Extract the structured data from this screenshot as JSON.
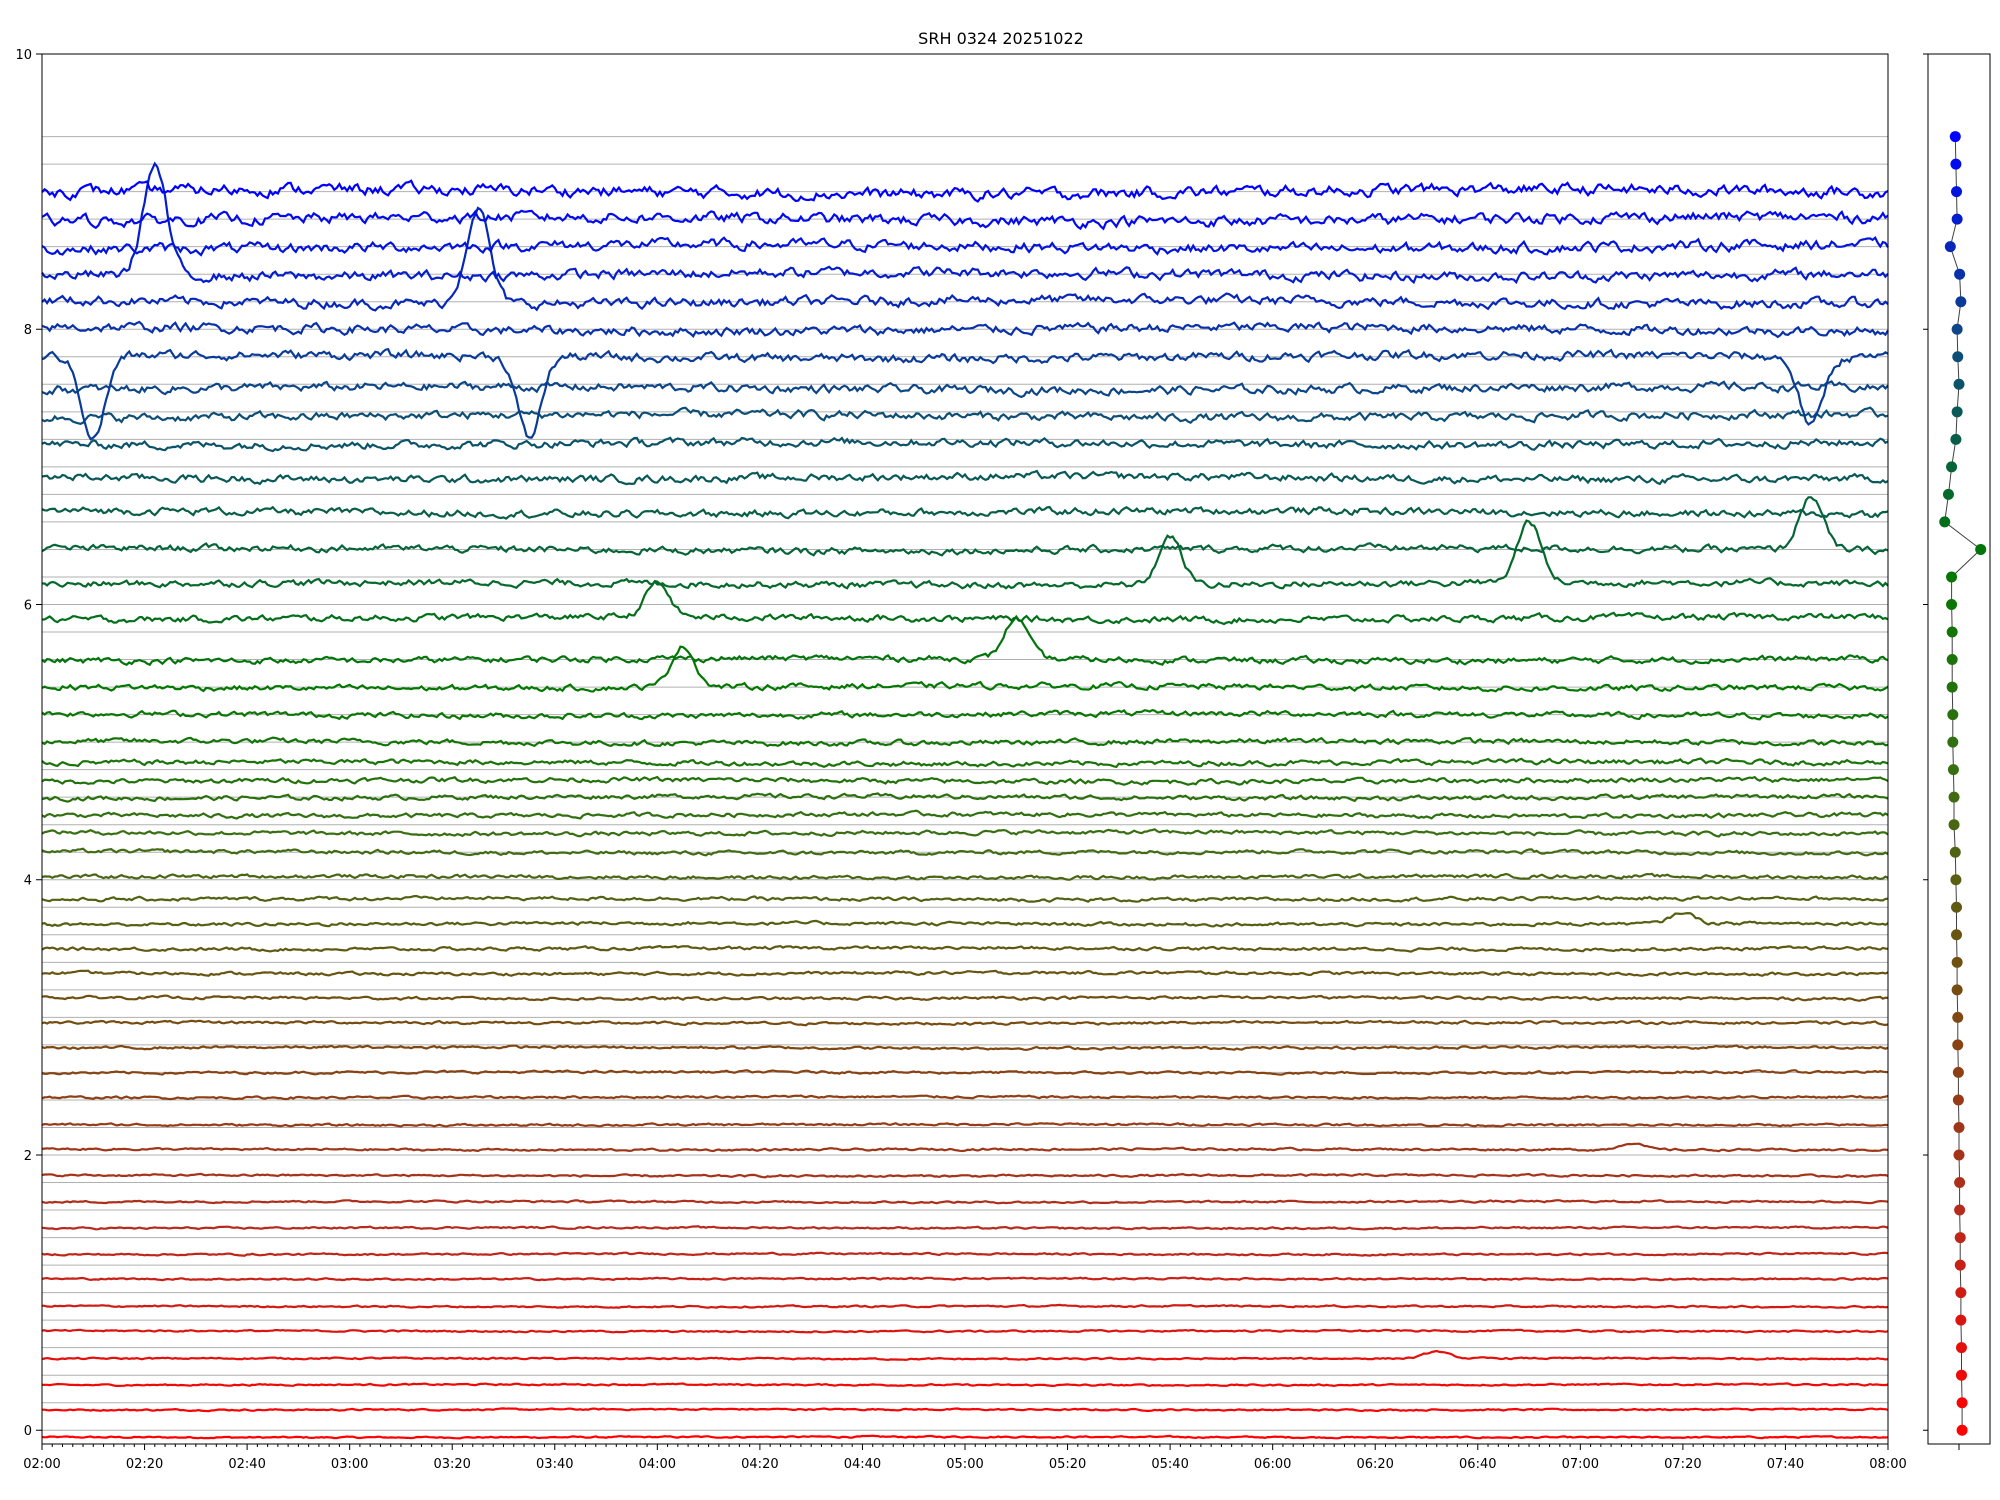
{
  "chart_data": {
    "type": "line",
    "title": "SRH 0324 20251022",
    "xlabel": "",
    "ylabel": "",
    "x_range": [
      "02:00",
      "08:00"
    ],
    "ylim": [
      -0.1,
      10
    ],
    "grid": true,
    "x_tick_labels": [
      "02:00",
      "02:20",
      "02:40",
      "03:00",
      "03:20",
      "03:40",
      "04:00",
      "04:20",
      "04:40",
      "05:00",
      "05:20",
      "05:40",
      "06:00",
      "06:20",
      "06:40",
      "07:00",
      "07:20",
      "07:40",
      "08:00"
    ],
    "y_tick_labels": [
      "0",
      "2",
      "4",
      "6",
      "8",
      "10"
    ],
    "trace_count": 48,
    "trace_colors": [
      "#ff0000",
      "#b62a1d",
      "#7a4a10",
      "#3d6e14",
      "#007800",
      "#0d4d7a",
      "#0000ff"
    ],
    "trace_offsets": [
      0.0,
      0.2,
      0.4,
      0.6,
      0.8,
      1.0,
      1.2,
      1.4,
      1.6,
      1.8,
      2.0,
      2.2,
      2.4,
      2.6,
      2.8,
      3.0,
      3.2,
      3.4,
      3.6,
      3.8,
      4.0,
      4.2,
      4.4,
      4.6,
      4.8,
      5.0,
      5.2,
      5.4,
      5.6,
      5.8,
      6.0,
      6.2,
      6.4,
      6.6,
      6.8,
      7.0,
      7.2,
      7.4,
      7.6,
      7.8,
      8.0,
      8.2,
      8.4,
      8.6,
      8.8,
      9.0,
      9.2,
      9.4
    ],
    "trace_baselines": [
      -0.05,
      0.15,
      0.33,
      0.52,
      0.72,
      0.9,
      1.1,
      1.28,
      1.47,
      1.66,
      1.85,
      2.04,
      2.22,
      2.42,
      2.6,
      2.78,
      2.96,
      3.14,
      3.32,
      3.5,
      3.68,
      3.86,
      4.02,
      4.2,
      4.34,
      4.47,
      4.6,
      4.72,
      4.85,
      5.0,
      5.2,
      5.4,
      5.6,
      5.9,
      6.15,
      6.4,
      6.67,
      6.92,
      7.17,
      7.37,
      7.57,
      7.8,
      8.0,
      8.2,
      8.4,
      8.6,
      8.8,
      9.0
    ],
    "bursts": [
      {
        "trace": 3,
        "time": "06:32",
        "amplitude": 0.05
      },
      {
        "trace": 11,
        "time": "07:10",
        "amplitude": 0.05
      },
      {
        "trace": 20,
        "time": "07:20",
        "amplitude": 0.08
      },
      {
        "trace": 31,
        "time": "04:05",
        "amplitude": 0.3
      },
      {
        "trace": 32,
        "time": "05:10",
        "amplitude": 0.3
      },
      {
        "trace": 33,
        "time": "04:00",
        "amplitude": 0.25
      },
      {
        "trace": 34,
        "time": "05:40",
        "amplitude": 0.35
      },
      {
        "trace": 34,
        "time": "06:50",
        "amplitude": 0.45
      },
      {
        "trace": 35,
        "time": "07:45",
        "amplitude": 0.4
      },
      {
        "trace": 41,
        "time": "02:10",
        "amplitude": -0.6
      },
      {
        "trace": 41,
        "time": "03:35",
        "amplitude": -0.6
      },
      {
        "trace": 41,
        "time": "07:45",
        "amplitude": -0.5
      },
      {
        "trace": 43,
        "time": "03:25",
        "amplitude": 0.7
      },
      {
        "trace": 44,
        "time": "02:22",
        "amplitude": 0.8
      }
    ],
    "side_panel_points": [
      0.0,
      0.2,
      0.4,
      0.6,
      0.8,
      1.0,
      1.2,
      1.4,
      1.6,
      1.8,
      2.0,
      2.2,
      2.4,
      2.6,
      2.8,
      3.0,
      3.2,
      3.4,
      3.6,
      3.8,
      4.0,
      4.2,
      4.4,
      4.6,
      4.8,
      5.0,
      5.2,
      5.4,
      5.6,
      5.8,
      6.0,
      6.2,
      6.4,
      6.6,
      6.8,
      7.0,
      7.2,
      7.4,
      7.6,
      7.8,
      8.0,
      8.2,
      8.4,
      8.6,
      8.8,
      9.0,
      9.2,
      9.4
    ]
  }
}
